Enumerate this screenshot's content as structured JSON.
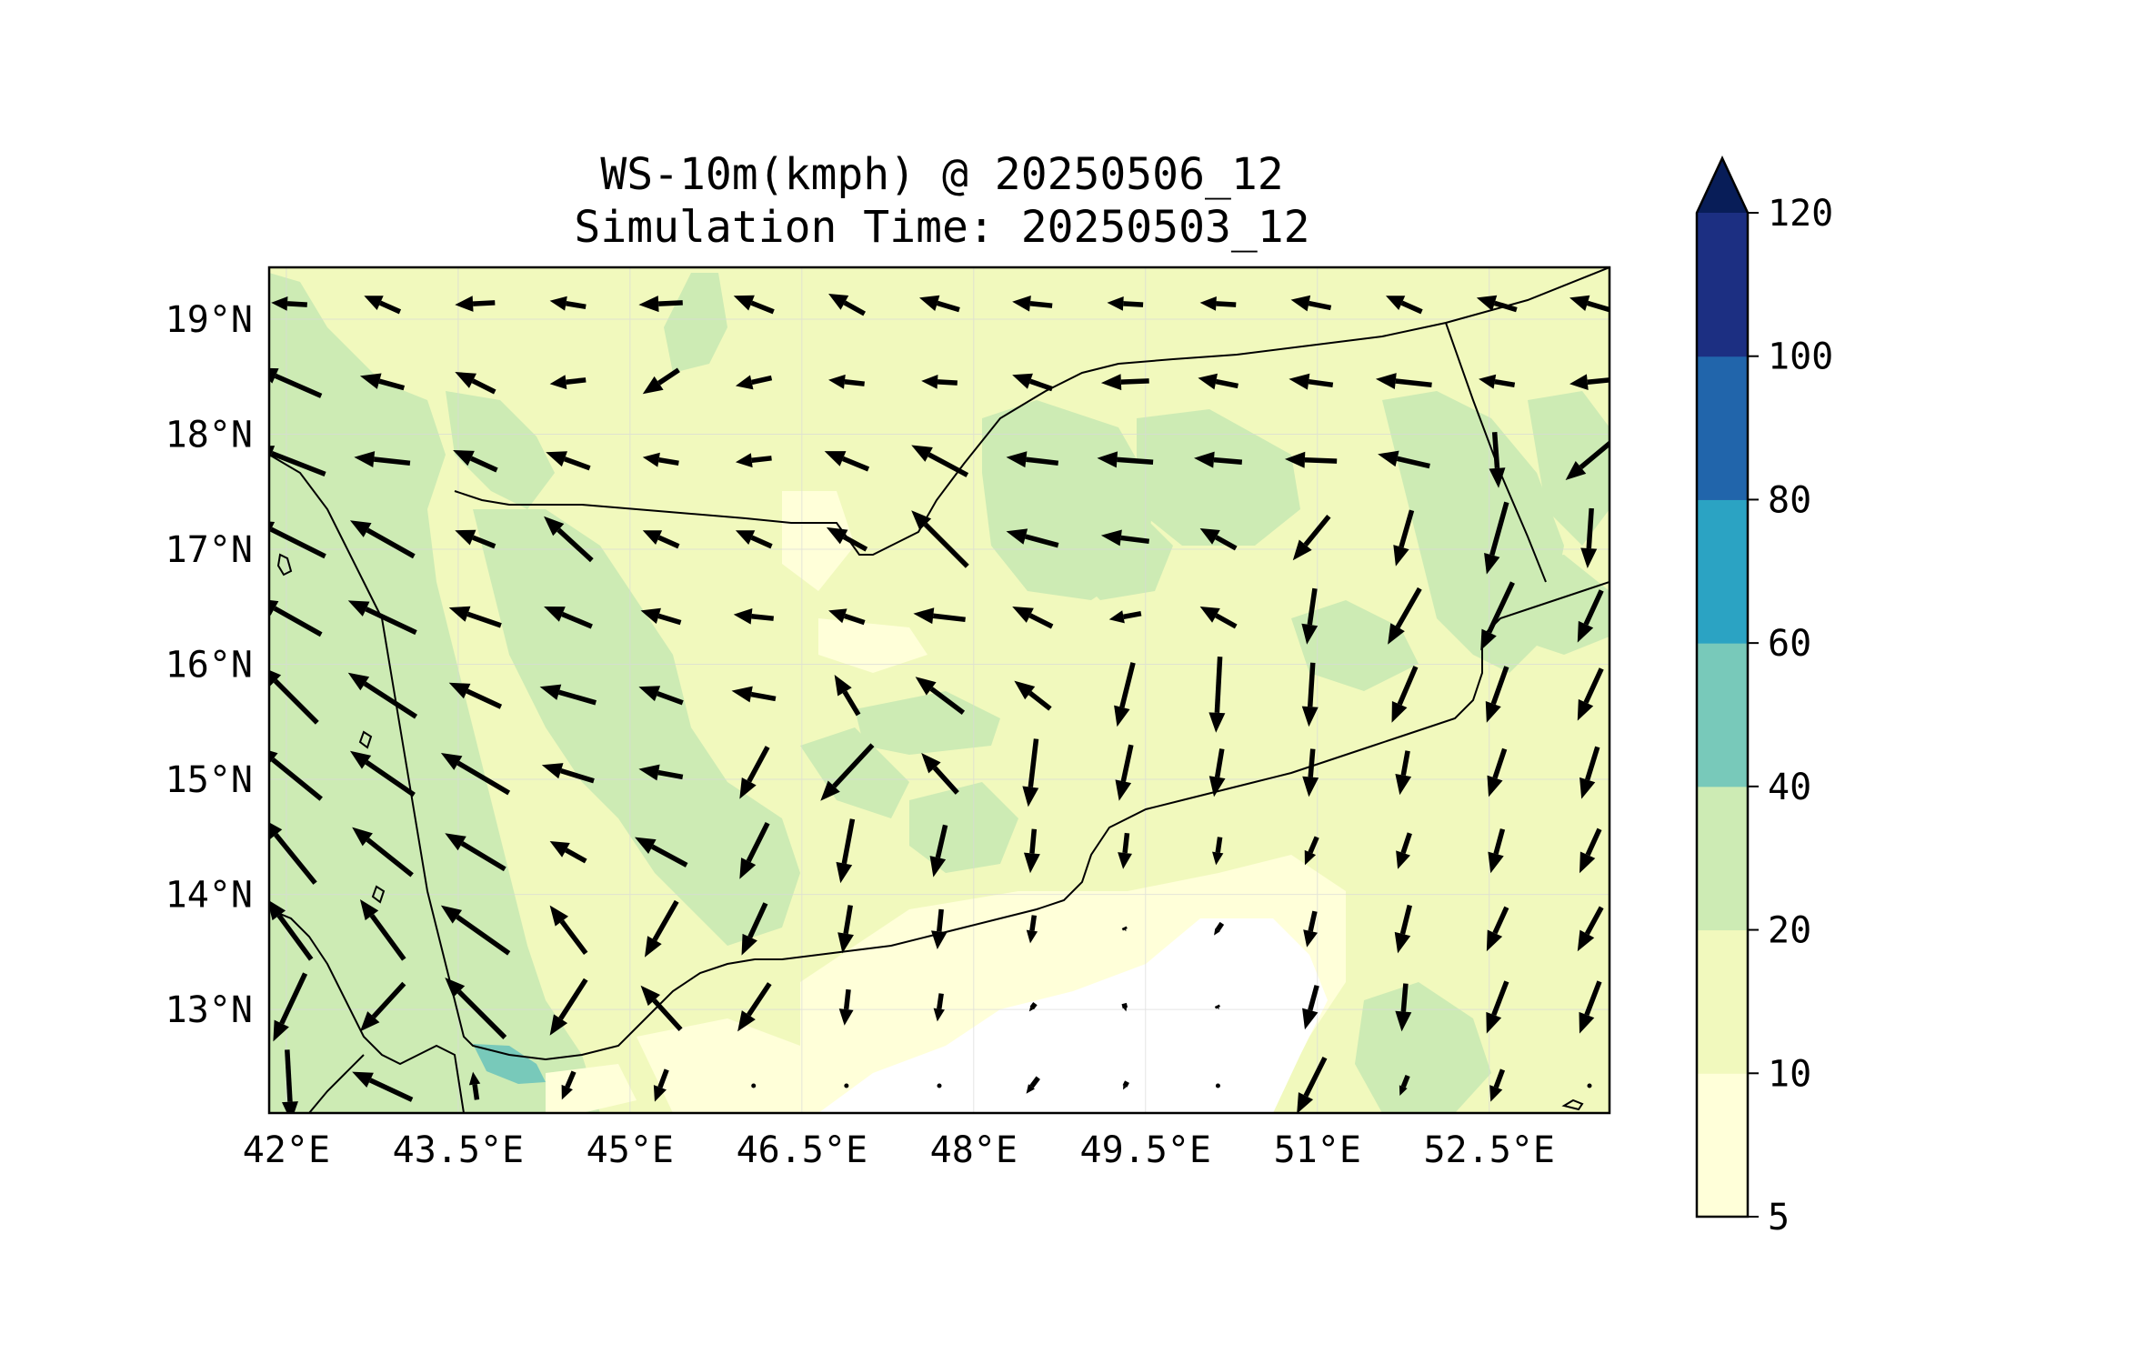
{
  "title": {
    "line1": "WS-10m(kmph) @ 20250506_12",
    "line2": "Simulation Time: 20250503_12"
  },
  "map": {
    "lon_range": [
      41.85,
      53.55
    ],
    "lat_range": [
      12.1,
      19.45
    ],
    "lon_ticks": [
      42,
      43.5,
      45,
      46.5,
      48,
      49.5,
      51,
      52.5
    ],
    "lon_tick_labels": [
      "42°E",
      "43.5°E",
      "45°E",
      "46.5°E",
      "48°E",
      "49.5°E",
      "51°E",
      "52.5°E"
    ],
    "lat_ticks": [
      19,
      18,
      17,
      16,
      15,
      14,
      13
    ],
    "lat_tick_labels": [
      "19°N",
      "18°N",
      "17°N",
      "16°N",
      "15°N",
      "14°N",
      "13°N"
    ],
    "gridlines": true,
    "coastlines": true,
    "borders": true
  },
  "colorbar": {
    "levels": [
      5,
      10,
      20,
      40,
      60,
      80,
      100,
      120
    ],
    "tick_labels": [
      "5",
      "10",
      "20",
      "40",
      "60",
      "80",
      "100",
      "120"
    ],
    "colors": [
      "#ffffd9",
      "#f1f9bd",
      "#cdebb4",
      "#78c9ba",
      "#2ba3c3",
      "#2165ab",
      "#1c2f82"
    ],
    "extend_color": "#081d58",
    "extend": "max",
    "unit": "kmph"
  },
  "wind": {
    "rows": [
      [
        [
          -18,
          1
        ],
        [
          -18,
          8
        ],
        [
          -20,
          -1
        ],
        [
          -18,
          3
        ],
        [
          -22,
          -1
        ],
        [
          -20,
          8
        ],
        [
          -18,
          10
        ],
        [
          -20,
          6
        ],
        [
          -20,
          2
        ],
        [
          -18,
          1
        ],
        [
          -18,
          1
        ],
        [
          -20,
          4
        ],
        [
          -18,
          8
        ],
        [
          -20,
          6
        ],
        [
          -20,
          6
        ]
      ],
      [
        [
          -32,
          14
        ],
        [
          -22,
          6
        ],
        [
          -20,
          10
        ],
        [
          -18,
          -2
        ],
        [
          -18,
          -12
        ],
        [
          -18,
          -4
        ],
        [
          -18,
          2
        ],
        [
          -18,
          1
        ],
        [
          -20,
          7
        ],
        [
          -24,
          -1
        ],
        [
          -20,
          4
        ],
        [
          -22,
          3
        ],
        [
          -28,
          3
        ],
        [
          -18,
          3
        ],
        [
          -20,
          -2
        ]
      ],
      [
        [
          -36,
          14
        ],
        [
          -28,
          3
        ],
        [
          -22,
          10
        ],
        [
          -22,
          8
        ],
        [
          -18,
          3
        ],
        [
          -18,
          -2
        ],
        [
          -22,
          9
        ],
        [
          -28,
          15
        ],
        [
          -26,
          3
        ],
        [
          -28,
          2
        ],
        [
          -24,
          2
        ],
        [
          -26,
          1
        ],
        [
          -26,
          6
        ],
        [
          2,
          -28
        ],
        [
          -24,
          -20
        ]
      ],
      [
        [
          -36,
          18
        ],
        [
          -32,
          18
        ],
        [
          -20,
          8
        ],
        [
          -24,
          22
        ],
        [
          -18,
          8
        ],
        [
          -18,
          8
        ],
        [
          -20,
          11
        ],
        [
          -28,
          28
        ],
        [
          -26,
          7
        ],
        [
          -24,
          3
        ],
        [
          -18,
          10
        ],
        [
          -18,
          -22
        ],
        [
          -8,
          -28
        ],
        [
          -10,
          -36
        ],
        [
          -2,
          -30
        ]
      ],
      [
        [
          -32,
          18
        ],
        [
          -34,
          16
        ],
        [
          -26,
          9
        ],
        [
          -24,
          10
        ],
        [
          -20,
          6
        ],
        [
          -20,
          2
        ],
        [
          -18,
          6
        ],
        [
          -26,
          3
        ],
        [
          -20,
          10
        ],
        [
          -16,
          -3
        ],
        [
          -18,
          10
        ],
        [
          -4,
          -28
        ],
        [
          -16,
          -28
        ],
        [
          -16,
          -34
        ],
        [
          -12,
          -26
        ]
      ],
      [
        [
          -28,
          28
        ],
        [
          -34,
          22
        ],
        [
          -26,
          12
        ],
        [
          -28,
          8
        ],
        [
          -22,
          8
        ],
        [
          -22,
          4
        ],
        [
          -12,
          20
        ],
        [
          -24,
          18
        ],
        [
          -18,
          14
        ],
        [
          -8,
          -32
        ],
        [
          -2,
          -38
        ],
        [
          -2,
          -32
        ],
        [
          -12,
          -28
        ],
        [
          -10,
          -28
        ],
        [
          -12,
          -26
        ]
      ],
      [
        [
          -32,
          26
        ],
        [
          -32,
          22
        ],
        [
          -34,
          20
        ],
        [
          -26,
          8
        ],
        [
          -22,
          4
        ],
        [
          -14,
          -26
        ],
        [
          -26,
          -28
        ],
        [
          -18,
          20
        ],
        [
          -4,
          -34
        ],
        [
          -6,
          -28
        ],
        [
          -4,
          -24
        ],
        [
          -2,
          -24
        ],
        [
          -4,
          -22
        ],
        [
          -8,
          -24
        ],
        [
          -8,
          -26
        ]
      ],
      [
        [
          -26,
          32
        ],
        [
          -30,
          24
        ],
        [
          -30,
          18
        ],
        [
          -18,
          10
        ],
        [
          -26,
          14
        ],
        [
          -14,
          -28
        ],
        [
          -6,
          -32
        ],
        [
          -6,
          -26
        ],
        [
          -2,
          -22
        ],
        [
          -2,
          -18
        ],
        [
          -2,
          -14
        ],
        [
          -6,
          -14
        ],
        [
          -6,
          -18
        ],
        [
          -6,
          -22
        ],
        [
          -10,
          -22
        ]
      ],
      [
        [
          -22,
          30
        ],
        [
          -22,
          30
        ],
        [
          -34,
          24
        ],
        [
          -18,
          24
        ],
        [
          -16,
          -28
        ],
        [
          -12,
          -26
        ],
        [
          -4,
          -24
        ],
        [
          -2,
          -20
        ],
        [
          -2,
          -14
        ],
        [
          1,
          -2
        ],
        [
          -4,
          -6
        ],
        [
          -4,
          -18
        ],
        [
          -6,
          -24
        ],
        [
          -10,
          -22
        ],
        [
          -12,
          -22
        ]
      ],
      [
        [
          -16,
          -34
        ],
        [
          -22,
          -24
        ],
        [
          -30,
          30
        ],
        [
          -18,
          -28
        ],
        [
          -20,
          22
        ],
        [
          -16,
          -24
        ],
        [
          -2,
          -18
        ],
        [
          -2,
          -14
        ],
        [
          -3,
          -4
        ],
        [
          1,
          -4
        ],
        [
          1,
          -2
        ],
        [
          -6,
          -22
        ],
        [
          -2,
          -24
        ],
        [
          -10,
          -26
        ],
        [
          -10,
          -26
        ]
      ],
      [
        [
          2,
          -36
        ],
        [
          -30,
          14
        ],
        [
          -2,
          14
        ],
        [
          -6,
          -14
        ],
        [
          -6,
          -16
        ],
        [
          0,
          1
        ],
        [
          0,
          1
        ],
        [
          0,
          1
        ],
        [
          -6,
          -8
        ],
        [
          -2,
          -4
        ],
        [
          0,
          1
        ],
        [
          -14,
          -28
        ],
        [
          -4,
          -10
        ],
        [
          -6,
          -16
        ],
        [
          0,
          0
        ]
      ]
    ]
  }
}
